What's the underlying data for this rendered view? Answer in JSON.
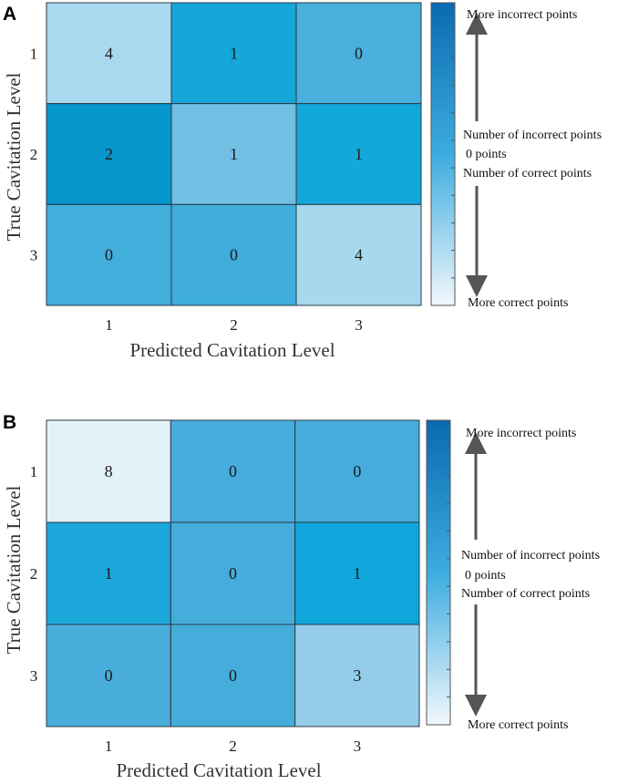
{
  "chart_data": [
    {
      "type": "heatmap",
      "panel": "A",
      "xlabel": "Predicted Cavitation Level",
      "ylabel": "True Cavitation Level",
      "x_categories": [
        "1",
        "2",
        "3"
      ],
      "y_categories": [
        "1",
        "2",
        "3"
      ],
      "values": [
        [
          4,
          1,
          0
        ],
        [
          2,
          1,
          1
        ],
        [
          0,
          0,
          4
        ]
      ],
      "cell_colors": [
        [
          "#a9d9ee",
          "#14a7d8",
          "#4aafdc"
        ],
        [
          "#0796cc",
          "#71bfe3",
          "#13a8db"
        ],
        [
          "#41aedc",
          "#40aedc",
          "#a8d8ee"
        ]
      ],
      "colorbar": {
        "top": "More incorrect points",
        "mid_upper": "Number of incorrect points",
        "mid": "0 points",
        "mid_lower": "Number of correct points",
        "bottom": "More correct points",
        "colors": [
          "#f2f8fc",
          "#3cace0",
          "#0a6ab0"
        ]
      }
    },
    {
      "type": "heatmap",
      "panel": "B",
      "xlabel": "Predicted Cavitation Level",
      "ylabel": "True Cavitation Level",
      "x_categories": [
        "1",
        "2",
        "3"
      ],
      "y_categories": [
        "1",
        "2",
        "3"
      ],
      "values": [
        [
          8,
          0,
          0
        ],
        [
          1,
          0,
          1
        ],
        [
          0,
          0,
          3
        ]
      ],
      "cell_colors": [
        [
          "#e3f1f9",
          "#46acdb",
          "#45acdb"
        ],
        [
          "#1ca7db",
          "#45acdb",
          "#0fa6dc"
        ],
        [
          "#48addb",
          "#44addb",
          "#94cdea"
        ]
      ],
      "colorbar": {
        "top": "More incorrect points",
        "mid_upper": "Number of incorrect points",
        "mid": "0 points",
        "mid_lower": "Number of correct points",
        "bottom": "More correct points",
        "colors": [
          "#f2f8fc",
          "#3cace0",
          "#0a6ab0"
        ]
      }
    }
  ]
}
